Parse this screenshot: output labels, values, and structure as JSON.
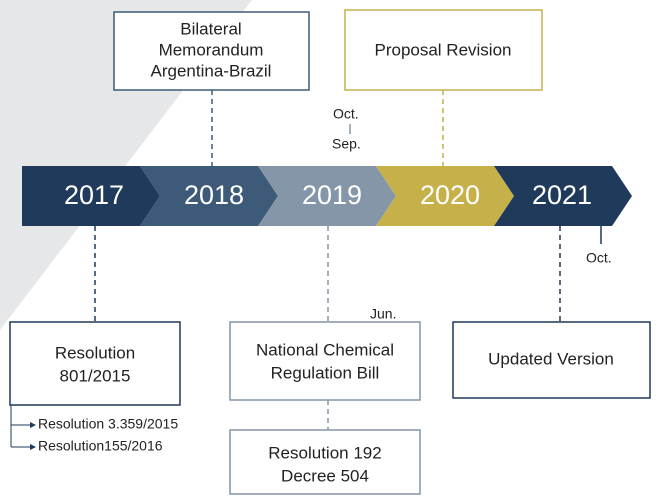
{
  "timeline": {
    "years": [
      "2017",
      "2018",
      "2019",
      "2020",
      "2021"
    ]
  },
  "above": {
    "bilateral": [
      "Bilateral",
      "Memorandum",
      "Argentina-Brazil"
    ],
    "proposal": "Proposal Revision",
    "oct": "Oct.",
    "sep": "Sep."
  },
  "below": {
    "resolution": [
      "Resolution",
      "801/2015"
    ],
    "sub_items": [
      "Resolution 3.359/2015",
      "Resolution155/2016"
    ],
    "jun": "Jun.",
    "bill": [
      "National Chemical",
      "Regulation Bill"
    ],
    "decree": [
      "Resolution 192",
      "Decree 504"
    ],
    "oct": "Oct.",
    "updated": "Updated Version"
  }
}
